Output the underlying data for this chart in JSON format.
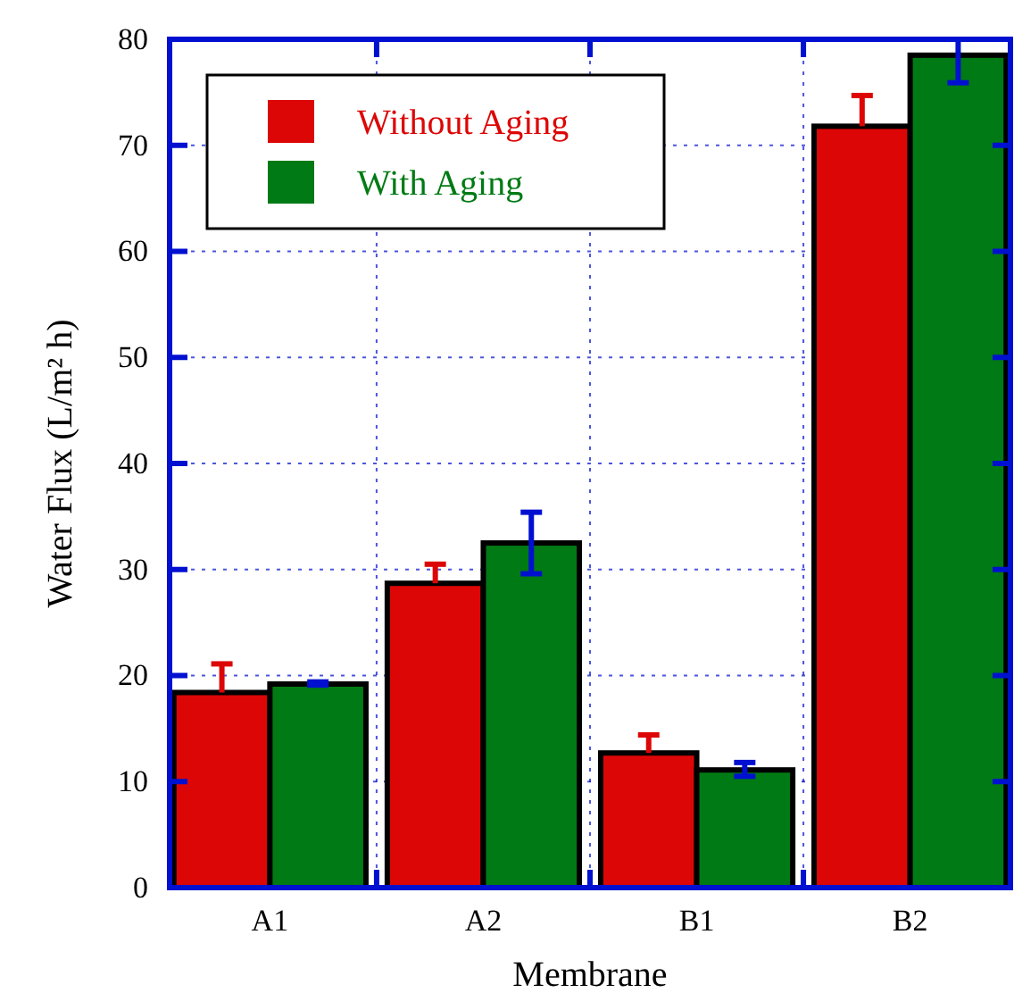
{
  "chart_data": {
    "type": "bar",
    "xlabel": "Membrane",
    "ylabel": "Water Flux  (L/m² h)",
    "categories": [
      "A1",
      "A2",
      "B1",
      "B2"
    ],
    "series": [
      {
        "name": "Without Aging",
        "color": "#dd0606",
        "values": [
          18.4,
          28.7,
          12.7,
          71.8
        ],
        "errors": [
          [
            18.4,
            21.1
          ],
          [
            28.7,
            30.5
          ],
          [
            12.7,
            14.4
          ],
          [
            71.8,
            74.7
          ]
        ]
      },
      {
        "name": "With Aging",
        "color": "#007a14",
        "values": [
          19.2,
          32.5,
          11.1,
          78.5
        ],
        "errors": [
          [
            19.1,
            19.4
          ],
          [
            29.6,
            35.4
          ],
          [
            10.5,
            11.8
          ],
          [
            75.9,
            80
          ]
        ]
      }
    ],
    "ylim": [
      0,
      80
    ],
    "yticks": [
      0,
      10,
      20,
      30,
      40,
      50,
      60,
      70,
      80
    ],
    "grid": true,
    "legend": "top left"
  }
}
